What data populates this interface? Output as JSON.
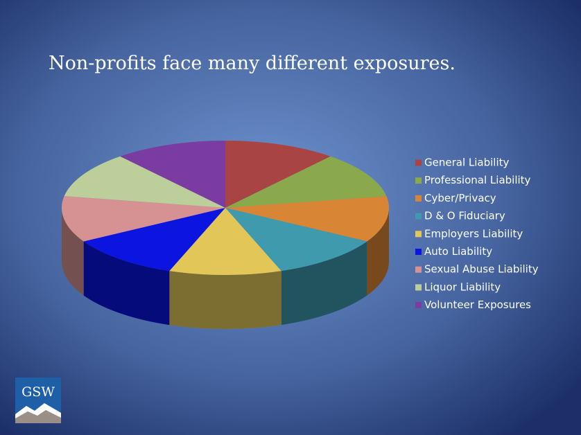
{
  "title": "Non-profits face many different exposures.",
  "logo": "GSW",
  "chart_data": {
    "type": "pie",
    "categories": [
      "General Liability",
      "Professional Liability",
      "Cyber/Privacy",
      "D & O Fiduciary",
      "Employers Liability",
      "Auto Liability",
      "Sexual Abuse Liability",
      "Liquor Liability",
      "Volunteer Exposures"
    ],
    "values": [
      1,
      1,
      1,
      1,
      1,
      1,
      1,
      1,
      1
    ],
    "colors": [
      "#a84444",
      "#8aa84c",
      "#d98536",
      "#3f9aae",
      "#e2c658",
      "#0c14e0",
      "#d69292",
      "#bccf9a",
      "#7a3ca0"
    ],
    "legend": "right"
  }
}
